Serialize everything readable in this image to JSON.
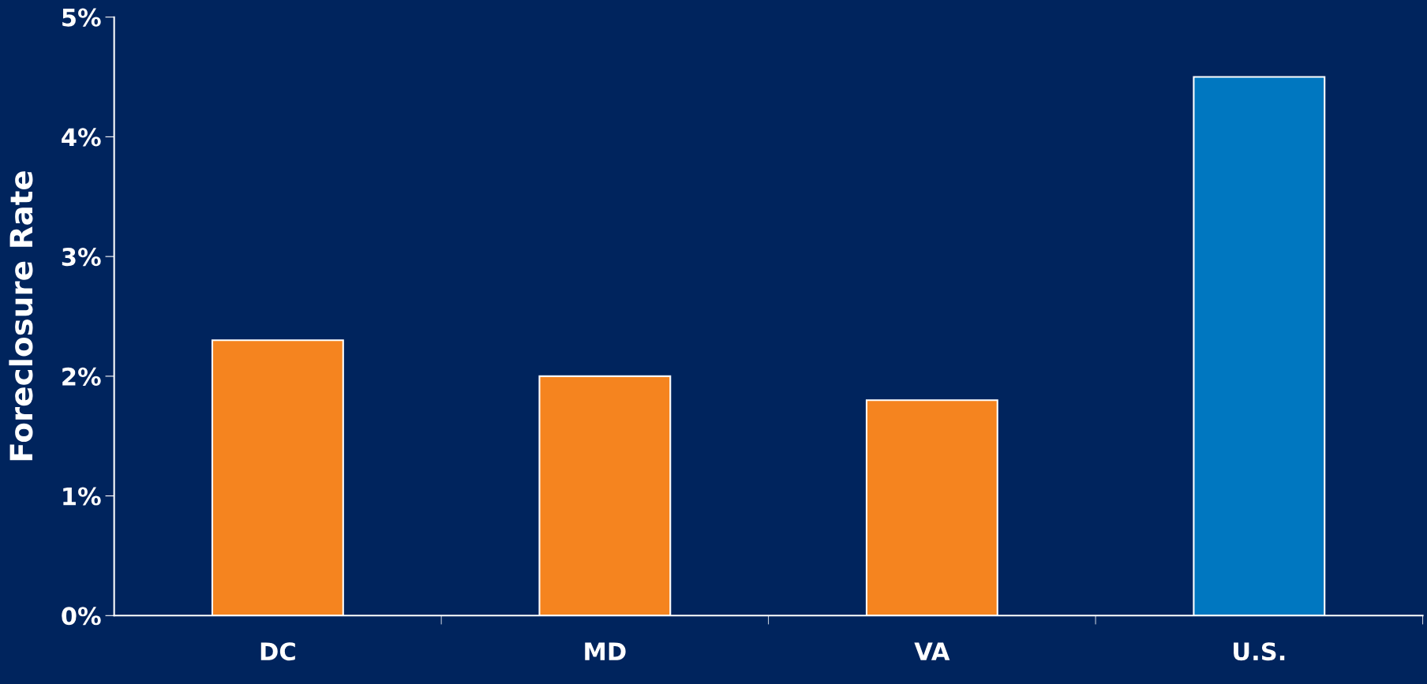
{
  "chart_data": {
    "type": "bar",
    "ylabel": "Foreclosure Rate",
    "categories": [
      "DC",
      "MD",
      "VA",
      "U.S."
    ],
    "values": [
      2.3,
      2.0,
      1.8,
      4.5
    ],
    "colors": [
      "#f5841f",
      "#f5841f",
      "#f5841f",
      "#0077c0"
    ],
    "ylim": [
      0,
      5
    ],
    "yticks": [
      {
        "value": 0,
        "label": "0%"
      },
      {
        "value": 1,
        "label": "1%"
      },
      {
        "value": 2,
        "label": "2%"
      },
      {
        "value": 3,
        "label": "3%"
      },
      {
        "value": 4,
        "label": "4%"
      },
      {
        "value": 5,
        "label": "5%"
      }
    ],
    "grid": false,
    "legend": false
  }
}
